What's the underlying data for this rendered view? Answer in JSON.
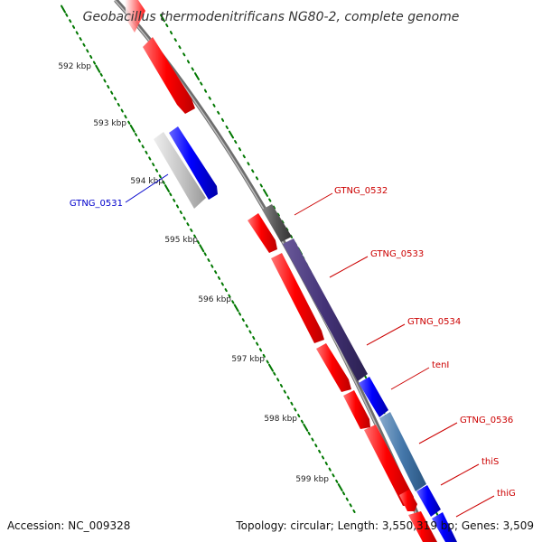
{
  "title": "Geobacillus thermodenitrificans NG80-2, complete genome",
  "footer": {
    "accession": "Accession: NC_009328",
    "summary": "Topology: circular; Length: 3,550,319 bp; Genes: 3,509"
  },
  "kbp_labels": [
    "592 kbp",
    "593 kbp",
    "594 kbp",
    "595 kbp",
    "596 kbp",
    "597 kbp",
    "598 kbp",
    "599 kbp"
  ],
  "genes": [
    {
      "name": "GTNG_0531",
      "color": "#0000cc"
    },
    {
      "name": "GTNG_0532",
      "color": "#cc0000"
    },
    {
      "name": "GTNG_0533",
      "color": "#cc0000"
    },
    {
      "name": "GTNG_0534",
      "color": "#cc0000"
    },
    {
      "name": "tenI",
      "color": "#cc0000"
    },
    {
      "name": "GTNG_0536",
      "color": "#cc0000"
    },
    {
      "name": "thiS",
      "color": "#cc0000"
    },
    {
      "name": "thiG",
      "color": "#cc0000"
    }
  ],
  "colors": {
    "forward_cds": "#ff0000",
    "reverse_cds": "#0000ff",
    "grey_feature": "#bbbbbb",
    "dark_feature": "#555555",
    "purple_feature": "#443377",
    "steel_feature": "#4477aa",
    "backbone": "#888888",
    "tick": "#007700"
  }
}
